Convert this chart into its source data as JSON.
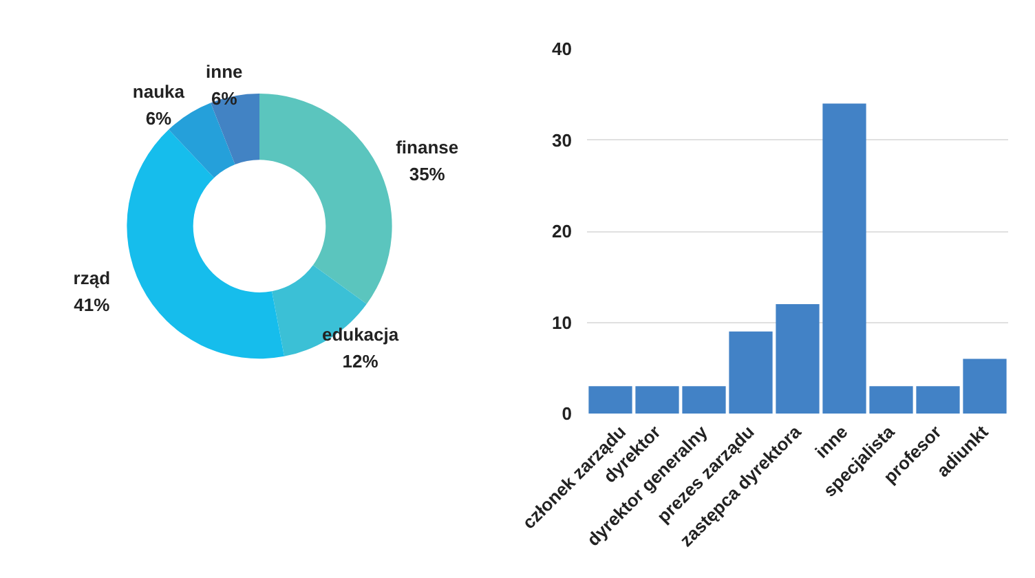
{
  "chart_data": [
    {
      "type": "donut",
      "categories": [
        "finanse",
        "edukacja",
        "rząd",
        "nauka",
        "inne"
      ],
      "values": [
        35,
        12,
        41,
        6,
        6
      ],
      "colors": [
        "#5bc5be",
        "#3bc0d6",
        "#16bdec",
        "#25a0da",
        "#4283c4"
      ],
      "value_labels": [
        "35%",
        "12%",
        "41%",
        "6%",
        "6%"
      ]
    },
    {
      "type": "bar",
      "categories": [
        "członek zarządu",
        "dyrektor",
        "dyrektor generalny",
        "prezes zarządu",
        "zastępca dyrektora",
        "inne",
        "specjalista",
        "profesor",
        "adiunkt"
      ],
      "values": [
        3,
        3,
        3,
        9,
        12,
        34,
        3,
        3,
        6
      ],
      "color": "#4282c6",
      "ylim": [
        0,
        40
      ],
      "yticks": [
        0,
        10,
        20,
        30,
        40
      ],
      "grid": "y"
    }
  ]
}
